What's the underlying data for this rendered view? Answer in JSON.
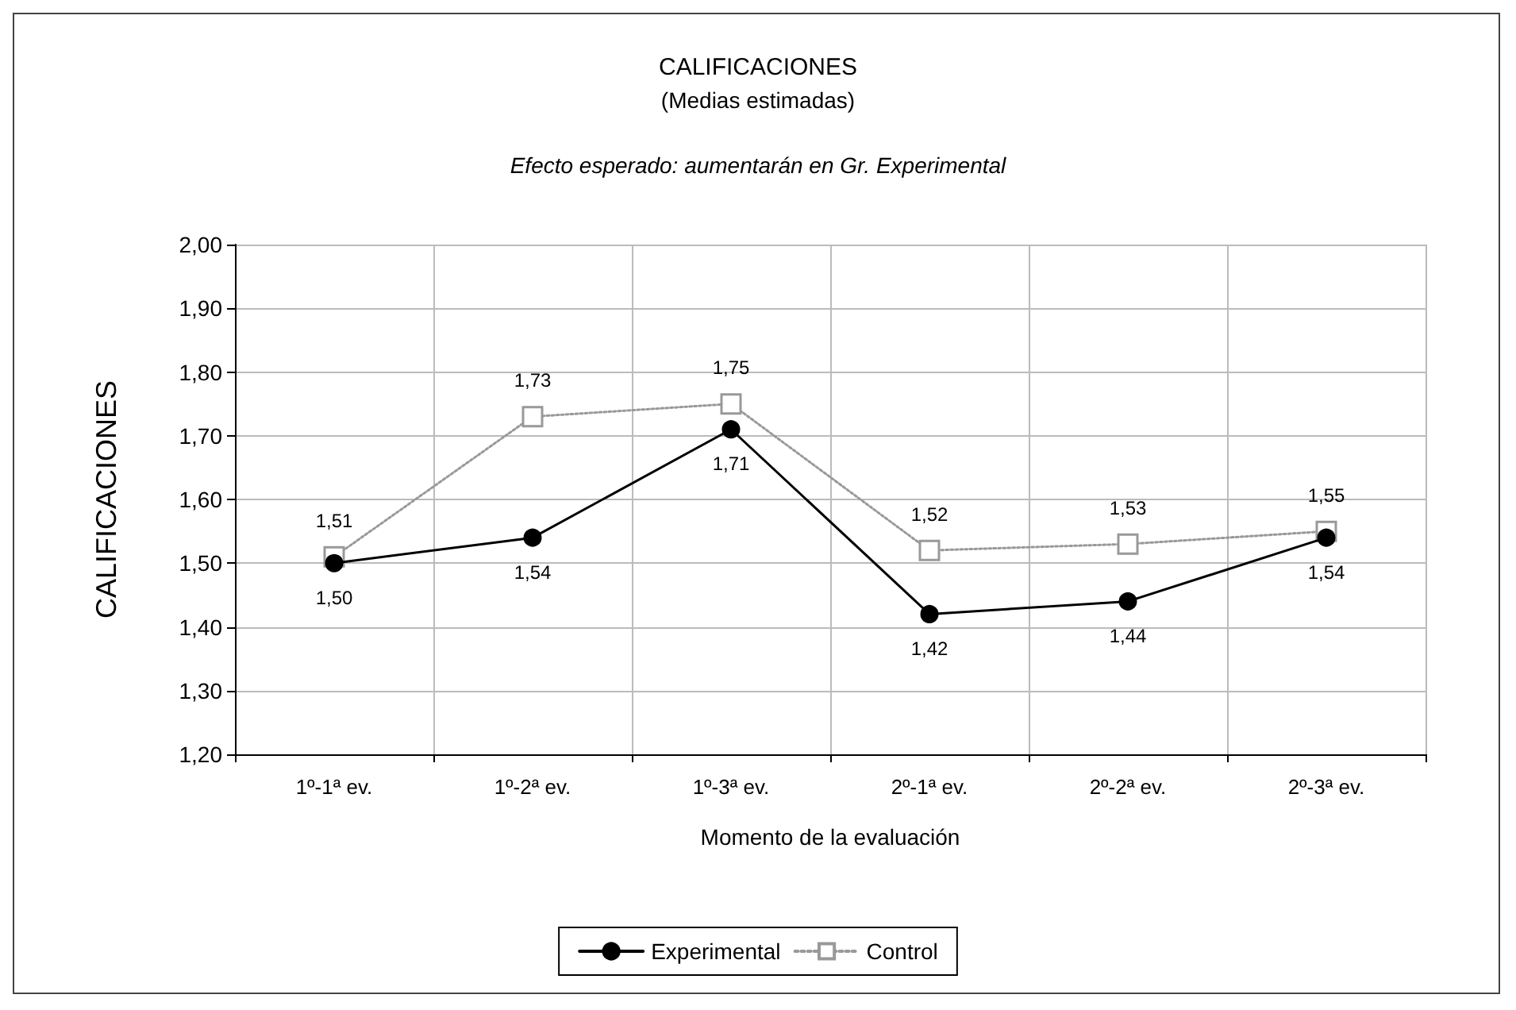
{
  "chart_data": {
    "type": "line",
    "title": "CALIFICACIONES",
    "subtitle": "(Medias estimadas)",
    "annotations": [
      "Efecto esperado: aumentarán en Gr. Experimental"
    ],
    "xlabel": "Momento de la evaluación",
    "ylabel": "CALIFICACIONES",
    "categories": [
      "1º-1ª ev.",
      "1º-2ª ev.",
      "1º-3ª ev.",
      "2º-1ª ev.",
      "2º-2ª ev.",
      "2º-3ª ev."
    ],
    "series": [
      {
        "name": "Experimental",
        "color": "#000000",
        "values": [
          1.5,
          1.54,
          1.71,
          1.42,
          1.44,
          1.54
        ],
        "value_labels": [
          "1,50",
          "1,54",
          "1,71",
          "1,42",
          "1,44",
          "1,54"
        ],
        "marker": "circle",
        "line_style": "solid"
      },
      {
        "name": "Control",
        "color": "#999999",
        "values": [
          1.51,
          1.73,
          1.75,
          1.52,
          1.53,
          1.55
        ],
        "value_labels": [
          "1,51",
          "1,73",
          "1,75",
          "1,52",
          "1,53",
          "1,55"
        ],
        "marker": "square",
        "line_style": "dotted"
      }
    ],
    "ylim": [
      1.2,
      2.0
    ],
    "yticks": [
      {
        "value": 1.2,
        "label": "1,20"
      },
      {
        "value": 1.3,
        "label": "1,30"
      },
      {
        "value": 1.4,
        "label": "1,40"
      },
      {
        "value": 1.5,
        "label": "1,50"
      },
      {
        "value": 1.6,
        "label": "1,60"
      },
      {
        "value": 1.7,
        "label": "1,70"
      },
      {
        "value": 1.8,
        "label": "1,80"
      },
      {
        "value": 1.9,
        "label": "1,90"
      },
      {
        "value": 2.0,
        "label": "2,00"
      }
    ],
    "grid": true,
    "legend": "bottom"
  }
}
